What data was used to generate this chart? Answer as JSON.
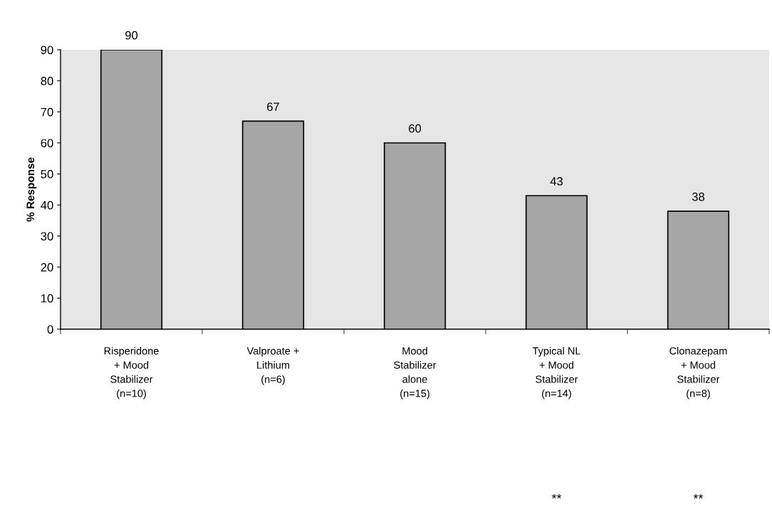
{
  "chart_data": {
    "type": "bar",
    "ylabel": "% Response",
    "categories": [
      "Risperidone\n+ Mood\nStabilizer\n(n=10)",
      "Valproate +\nLithium\n(n=6)",
      "Mood\nStabilizer\nalone\n(n=15)",
      "Typical NL\n+ Mood\nStabilizer\n(n=14)",
      "Clonazepam\n+ Mood\nStabilizer\n(n=8)"
    ],
    "values": [
      90,
      67,
      60,
      43,
      38
    ],
    "color": "#a6a6a6",
    "ylim": [
      0,
      90
    ],
    "yticks": [
      0,
      10,
      20,
      30,
      40,
      50,
      60,
      70,
      80,
      90
    ],
    "data_labels": true,
    "grid": false,
    "legend": false,
    "annotations": [
      "**",
      "**"
    ]
  }
}
